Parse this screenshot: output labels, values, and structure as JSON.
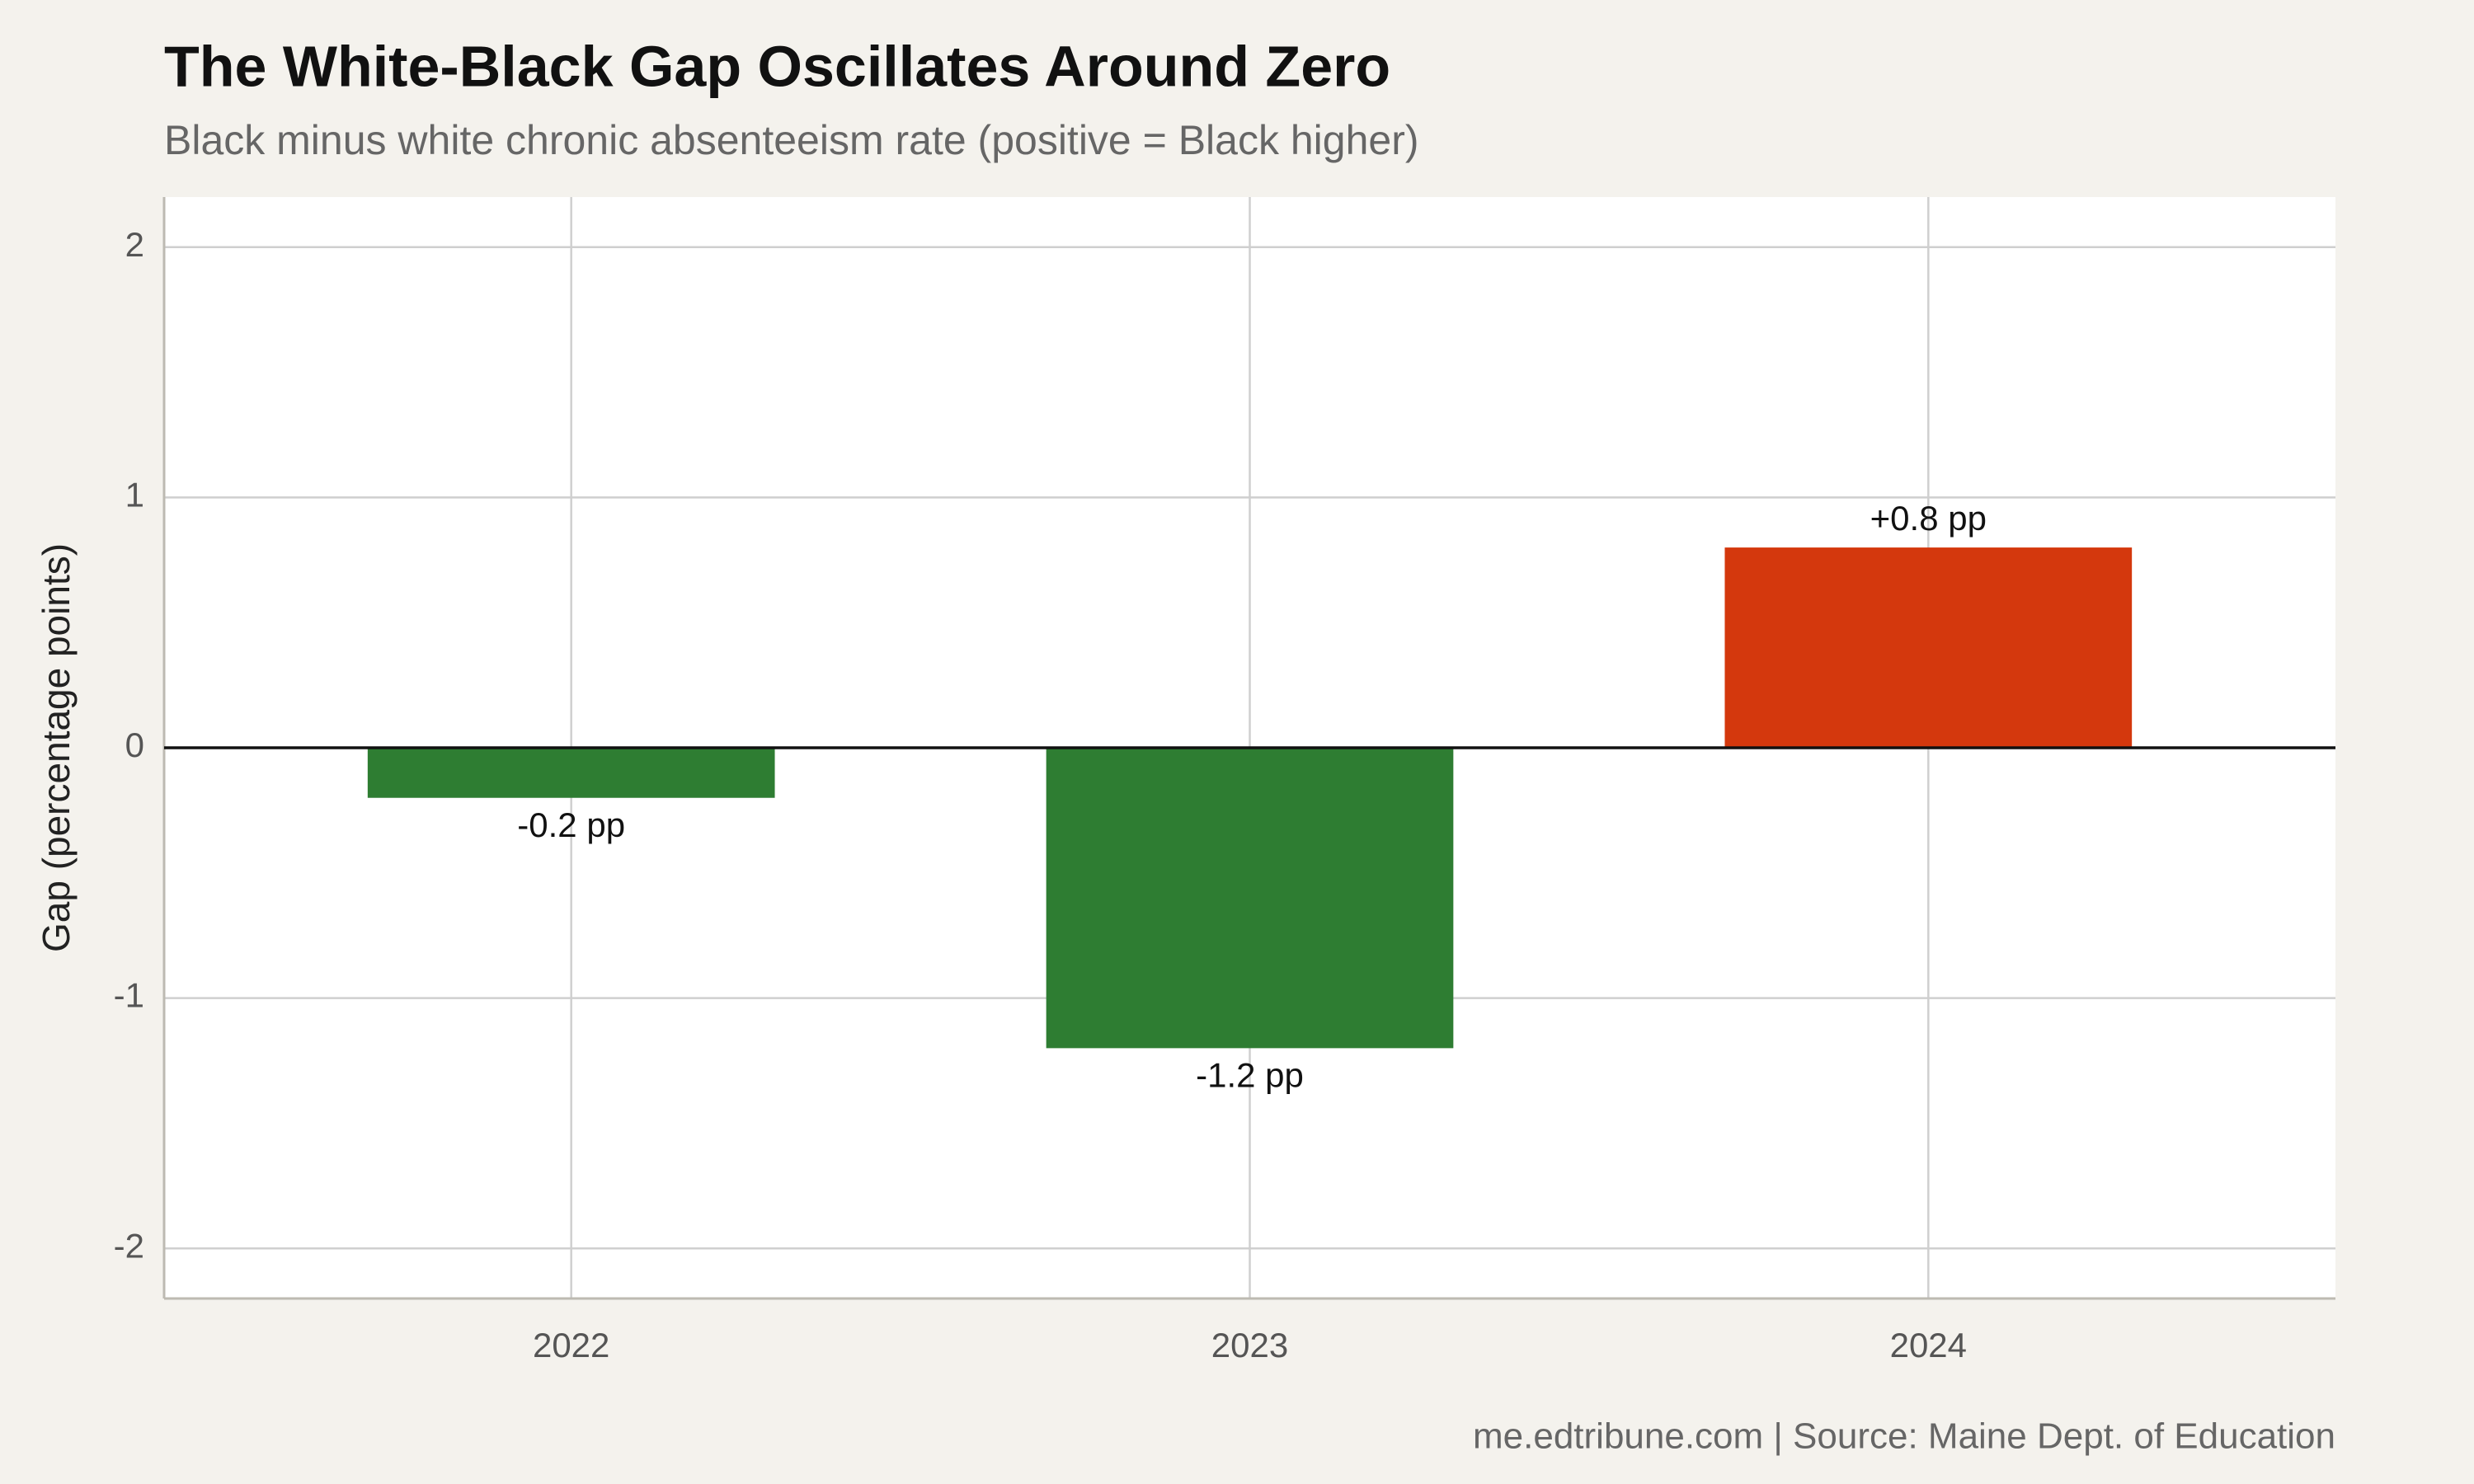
{
  "chart_data": {
    "type": "bar",
    "title": "The White-Black Gap Oscillates Around Zero",
    "subtitle": "Black minus white chronic absenteeism rate (positive = Black higher)",
    "y_label": "Gap (percentage points)",
    "caption": "me.edtribune.com | Source: Maine Dept. of Education",
    "categories": [
      "2022",
      "2023",
      "2024"
    ],
    "values": [
      -0.2,
      -1.2,
      0.8
    ],
    "value_labels": [
      "-0.2 pp",
      "-1.2 pp",
      "+0.8 pp"
    ],
    "colors": [
      "#2e7d32",
      "#2e7d32",
      "#d4380d"
    ],
    "ylim": [
      -2.2,
      2.2
    ],
    "yticks": [
      -2,
      -1,
      0,
      1,
      2
    ],
    "grid": true
  }
}
